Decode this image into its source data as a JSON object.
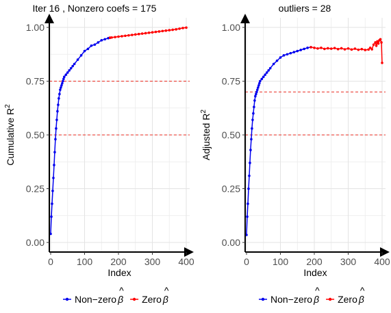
{
  "colors": {
    "nonzero": "#0000ee",
    "zero": "#ff0000",
    "threshold": "#e8281e"
  },
  "chart_data": [
    {
      "type": "line",
      "title": "Iter  16 , Nonzero coefs =  175",
      "xlabel": "Index",
      "ylabel": "Cumulative R",
      "ylabel_sup": "2",
      "xlim": [
        0,
        400
      ],
      "ylim": [
        0,
        1
      ],
      "x_ticks": [
        "0",
        "100",
        "200",
        "300",
        "400"
      ],
      "y_ticks": [
        "0.00",
        "0.25",
        "0.50",
        "0.75",
        "1.00"
      ],
      "hlines": [
        0.75,
        0.5
      ],
      "series": [
        {
          "name": "Non-zero β̂",
          "color": "#0000ee",
          "x": [
            0,
            2,
            4,
            6,
            8,
            10,
            12,
            14,
            16,
            18,
            20,
            22,
            24,
            26,
            28,
            30,
            32,
            34,
            36,
            38,
            40,
            45,
            50,
            55,
            60,
            65,
            70,
            80,
            90,
            100,
            110,
            120,
            130,
            140,
            150,
            160,
            170,
            175
          ],
          "y": [
            0.04,
            0.12,
            0.18,
            0.24,
            0.3,
            0.36,
            0.42,
            0.48,
            0.53,
            0.57,
            0.61,
            0.64,
            0.67,
            0.69,
            0.71,
            0.72,
            0.73,
            0.74,
            0.75,
            0.76,
            0.77,
            0.78,
            0.79,
            0.8,
            0.81,
            0.82,
            0.83,
            0.85,
            0.87,
            0.89,
            0.9,
            0.915,
            0.92,
            0.93,
            0.94,
            0.945,
            0.95,
            0.952
          ]
        },
        {
          "name": "Zero β̂",
          "color": "#ff0000",
          "x": [
            175,
            180,
            190,
            200,
            210,
            220,
            230,
            240,
            250,
            260,
            270,
            280,
            290,
            300,
            310,
            320,
            330,
            340,
            350,
            360,
            370,
            380,
            390,
            400
          ],
          "y": [
            0.952,
            0.953,
            0.955,
            0.957,
            0.959,
            0.961,
            0.963,
            0.965,
            0.967,
            0.969,
            0.971,
            0.973,
            0.975,
            0.977,
            0.979,
            0.981,
            0.983,
            0.985,
            0.987,
            0.989,
            0.991,
            0.994,
            0.997,
            0.999
          ]
        }
      ]
    },
    {
      "type": "line",
      "title": "outliers =  28",
      "xlabel": "Index",
      "ylabel": "Adjusted R",
      "ylabel_sup": "2",
      "xlim": [
        0,
        400
      ],
      "ylim": [
        0,
        1
      ],
      "x_ticks": [
        "0",
        "100",
        "200",
        "300",
        "400"
      ],
      "y_ticks": [
        "0.00",
        "0.25",
        "0.50",
        "0.75",
        "1.00"
      ],
      "hlines": [
        0.7,
        0.5
      ],
      "series": [
        {
          "name": "Non-zero β̂",
          "color": "#0000ee",
          "x": [
            0,
            2,
            4,
            6,
            8,
            10,
            12,
            14,
            16,
            18,
            20,
            22,
            24,
            26,
            28,
            30,
            32,
            34,
            36,
            38,
            40,
            45,
            50,
            55,
            60,
            65,
            70,
            80,
            90,
            100,
            110,
            120,
            130,
            140,
            150,
            160,
            170,
            180,
            190
          ],
          "y": [
            0.035,
            0.12,
            0.18,
            0.25,
            0.31,
            0.37,
            0.43,
            0.48,
            0.53,
            0.57,
            0.6,
            0.63,
            0.66,
            0.68,
            0.69,
            0.7,
            0.71,
            0.72,
            0.73,
            0.74,
            0.75,
            0.76,
            0.77,
            0.78,
            0.79,
            0.8,
            0.81,
            0.83,
            0.845,
            0.86,
            0.87,
            0.875,
            0.88,
            0.885,
            0.89,
            0.895,
            0.9,
            0.905,
            0.908
          ]
        },
        {
          "name": "Zero β̂",
          "color": "#ff0000",
          "x": [
            190,
            200,
            210,
            220,
            230,
            240,
            250,
            260,
            270,
            280,
            290,
            300,
            310,
            320,
            330,
            340,
            350,
            360,
            365,
            370,
            375,
            380,
            383,
            386,
            389,
            392,
            395,
            398,
            400
          ],
          "y": [
            0.908,
            0.905,
            0.902,
            0.905,
            0.9,
            0.903,
            0.901,
            0.904,
            0.899,
            0.903,
            0.898,
            0.902,
            0.897,
            0.901,
            0.896,
            0.899,
            0.895,
            0.897,
            0.905,
            0.898,
            0.92,
            0.93,
            0.915,
            0.935,
            0.925,
            0.94,
            0.945,
            0.93,
            0.835
          ]
        }
      ]
    }
  ],
  "legend": [
    {
      "items": [
        {
          "label": "Non−zero ",
          "color": "#0000ee"
        },
        {
          "label": "Zero ",
          "color": "#ff0000"
        }
      ],
      "symbol": "β",
      "hat": "^"
    },
    {
      "items": [
        {
          "label": "Non−zero ",
          "color": "#0000ee"
        },
        {
          "label": "Zero ",
          "color": "#ff0000"
        }
      ],
      "symbol": "β",
      "hat": "^"
    }
  ]
}
